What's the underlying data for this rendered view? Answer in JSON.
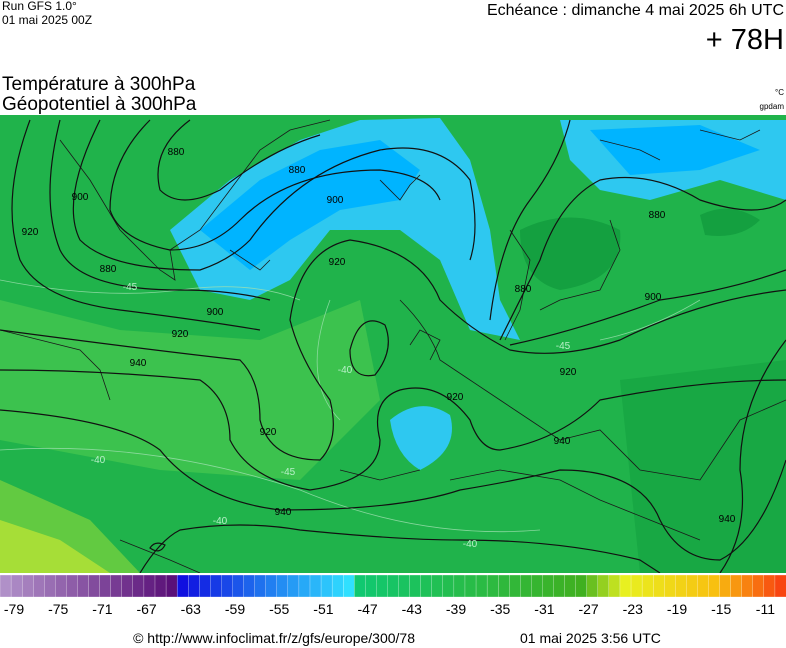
{
  "header": {
    "run": "Run GFS 1.0°",
    "run_date": "01 mai 2025 00Z",
    "valid": "Echéance : dimanche 4 mai 2025 6h UTC",
    "lead": "+ 78H",
    "title_1": "Température à 300hPa",
    "title_2": "Géopotentiel à 300hPa",
    "unit_temp": "°C",
    "unit_geo": "gpdam"
  },
  "map": {
    "contour_labels": [
      "880",
      "900",
      "920",
      "880",
      "900",
      "920",
      "940",
      "880",
      "900",
      "920",
      "920",
      "940",
      "920",
      "880",
      "900",
      "880",
      "920",
      "940",
      "940"
    ],
    "temp_labels": [
      "-45",
      "-40",
      "-40",
      "-45",
      "-40",
      "-45",
      "-40"
    ]
  },
  "scale": {
    "labels": [
      "-79",
      "-75",
      "-71",
      "-67",
      "-63",
      "-59",
      "-55",
      "-51",
      "-47",
      "-43",
      "-39",
      "-35",
      "-31",
      "-27",
      "-23",
      "-19",
      "-15",
      "-11"
    ]
  },
  "footer": {
    "url": "© http://www.infoclimat.fr/z/gfs/europe/300/78",
    "date": "01 mai 2025  3:56 UTC"
  }
}
